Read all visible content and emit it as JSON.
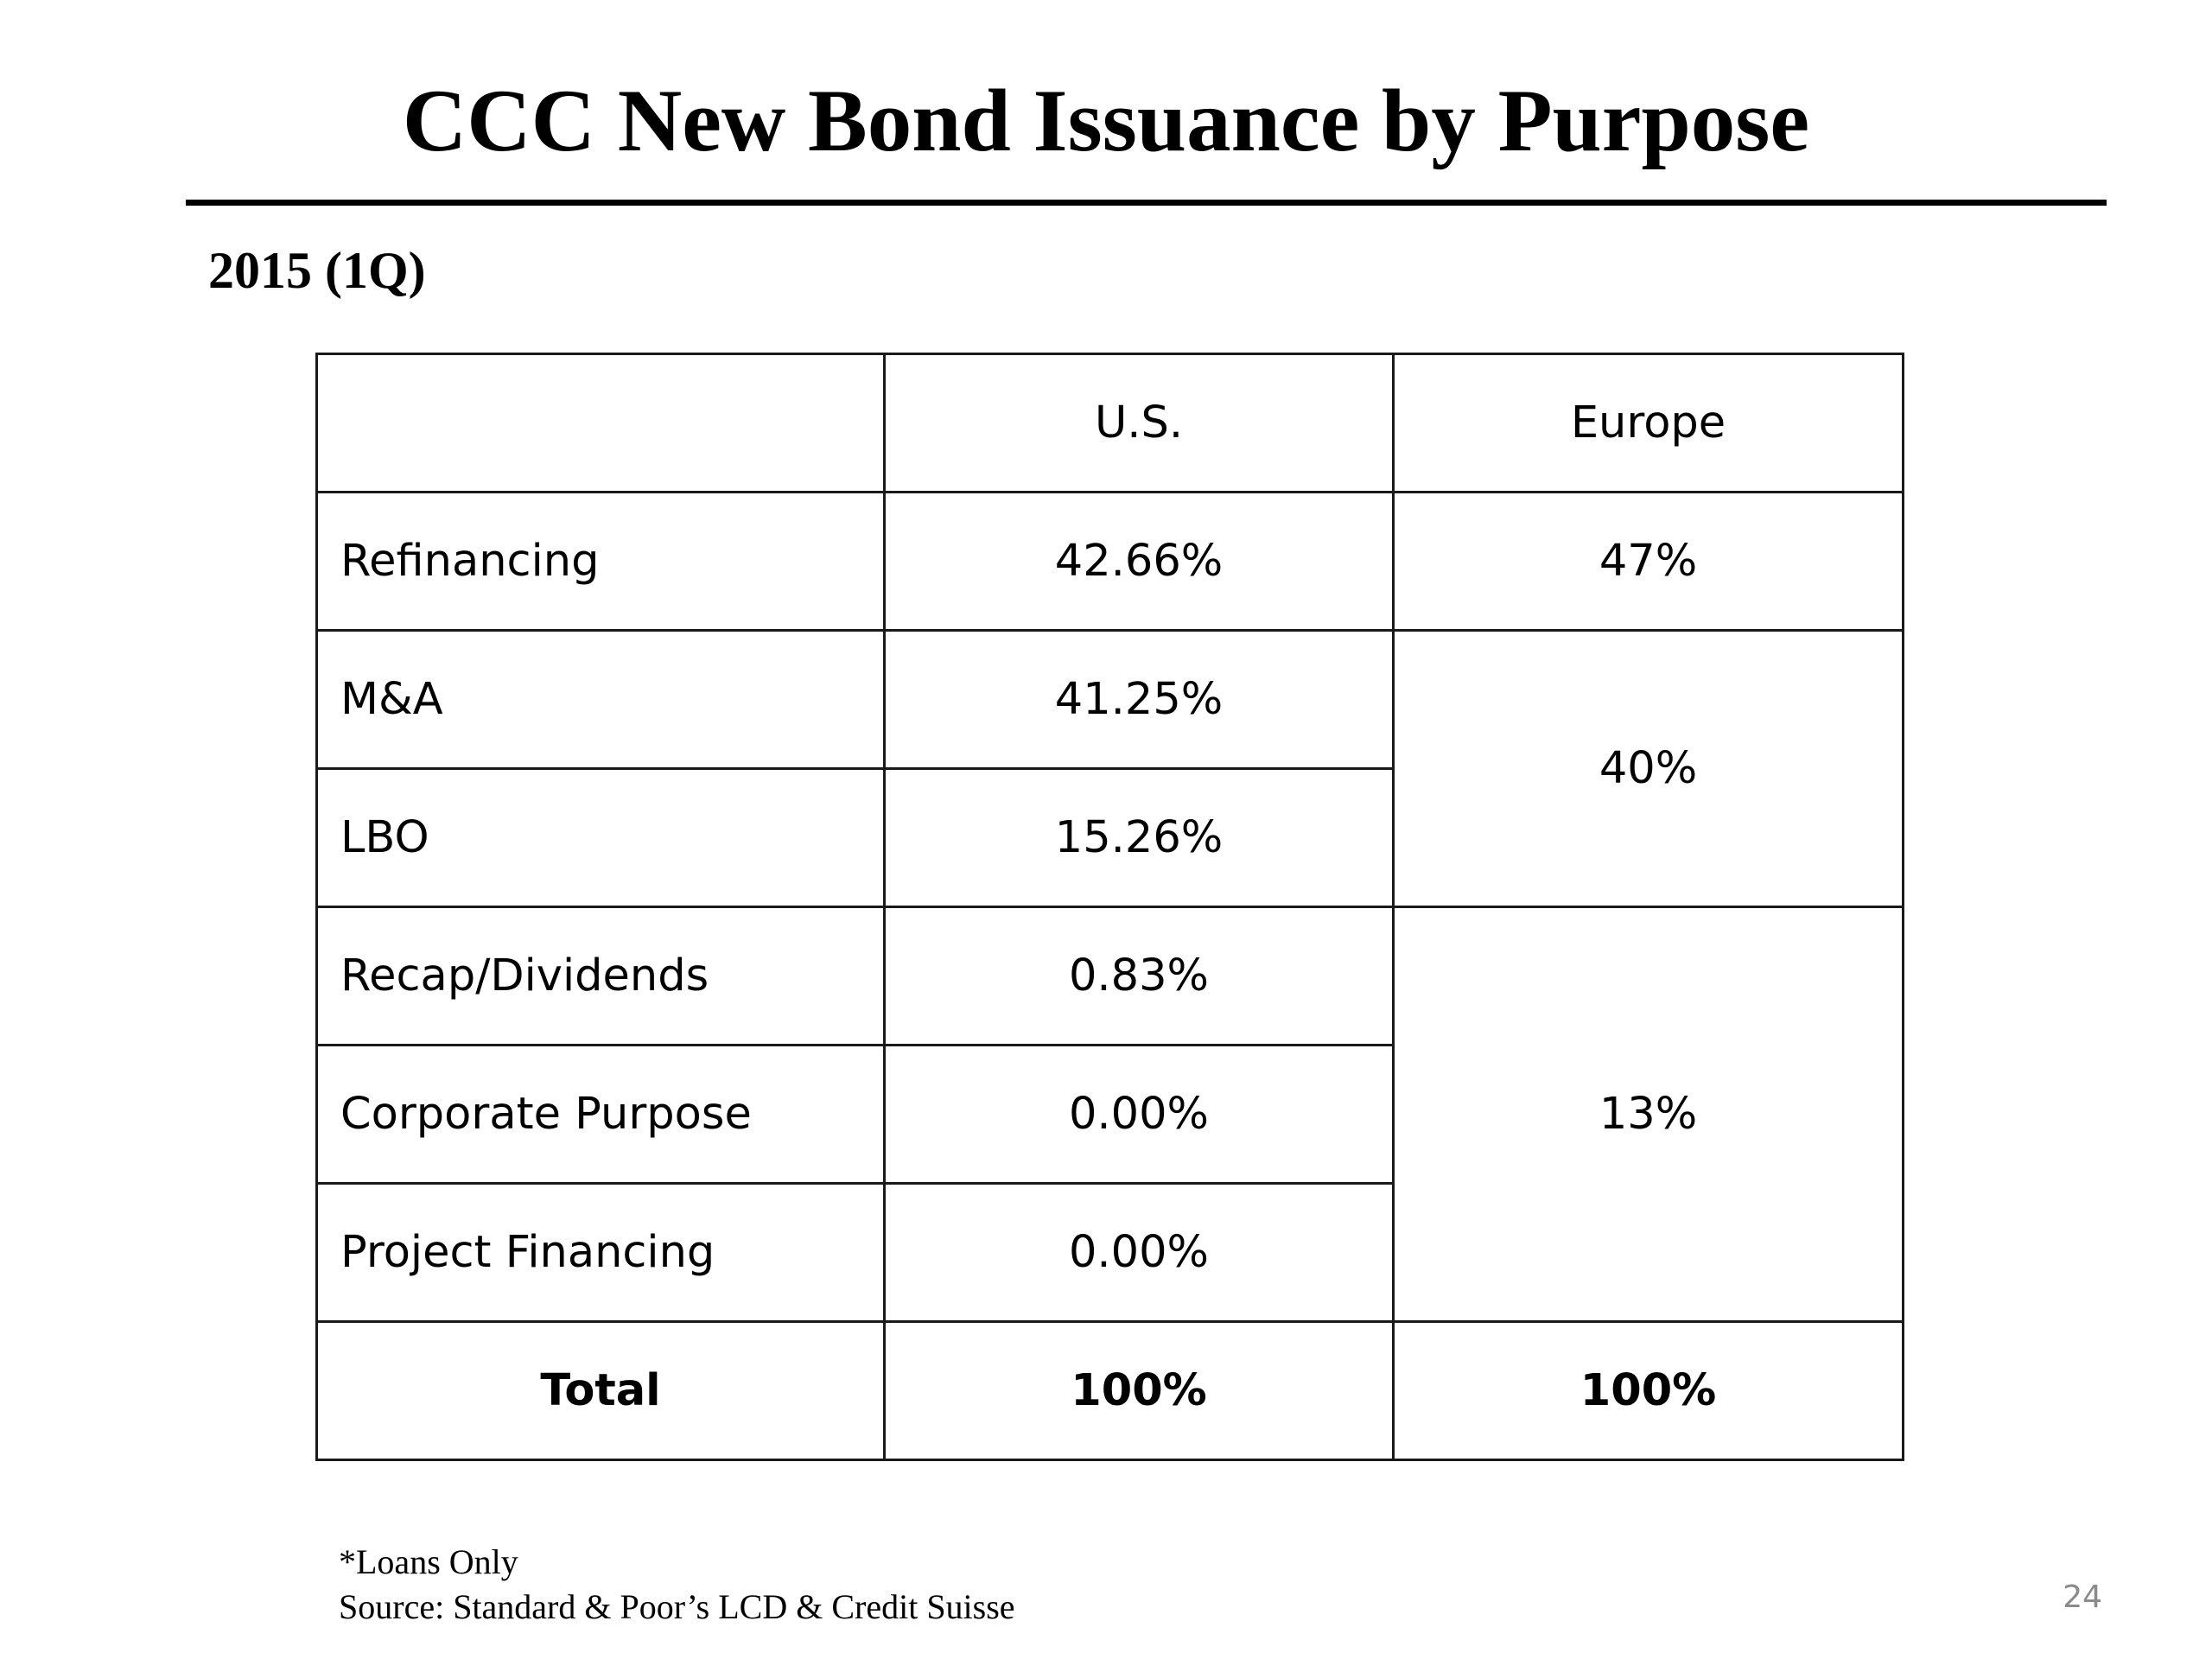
{
  "title": "CCC New Bond Issuance by Purpose",
  "subtitle": "2015 (1Q)",
  "table": {
    "headers": [
      "",
      "U.S.",
      "Europe"
    ],
    "rows": [
      {
        "label": "Refinancing",
        "us": "42.66%",
        "europe": "47%"
      },
      {
        "label": "M&A",
        "us": "41.25%",
        "europe": "40%"
      },
      {
        "label": "LBO",
        "us": "15.26%"
      },
      {
        "label": "Recap/Dividends",
        "us": "0.83%",
        "europe": "13%"
      },
      {
        "label": "Corporate Purpose",
        "us": "0.00%"
      },
      {
        "label": "Project Financing",
        "us": "0.00%"
      }
    ],
    "total": {
      "label": "Total",
      "us": "100%",
      "europe": "100%"
    }
  },
  "footnotes": {
    "note": "*Loans Only",
    "source": "Source: Standard & Poor’s LCD & Credit Suisse"
  },
  "page_number": "24"
}
